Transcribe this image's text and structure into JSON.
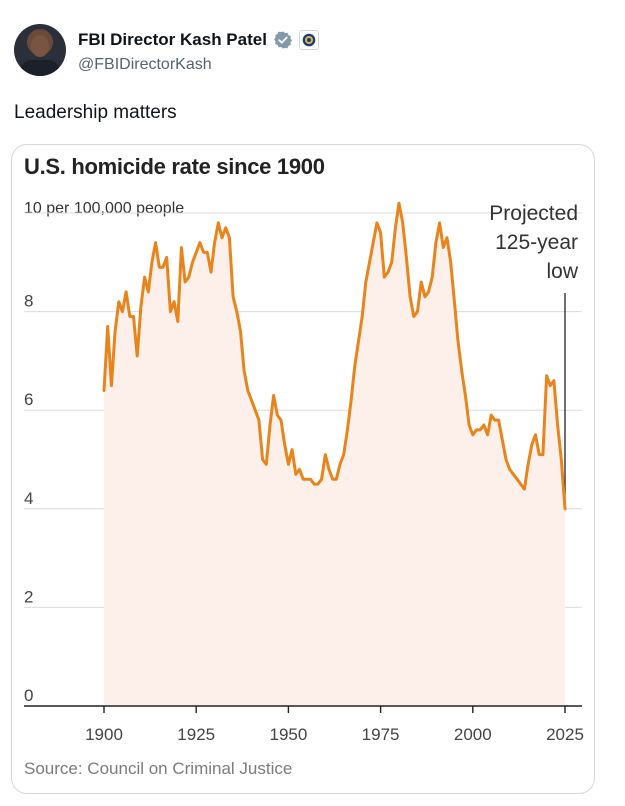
{
  "tweet": {
    "author_name": "FBI Director Kash Patel",
    "handle": "@FBIDirectorKash",
    "text": "Leadership matters",
    "verified_color": "#829aab"
  },
  "chart": {
    "source": "Source: Council on Criminal Justice"
  },
  "chart_data": {
    "type": "area",
    "title": "U.S. homicide rate since 1900",
    "ylabel": "10 per 100,000 people",
    "xlabel": "",
    "xlim": [
      1900,
      2025
    ],
    "ylim": [
      0,
      10
    ],
    "xticks": [
      "1900",
      "1925",
      "1950",
      "1975",
      "2000",
      "2025"
    ],
    "yticks": [
      "0",
      "2",
      "4",
      "6",
      "8"
    ],
    "grid": true,
    "line_color": "#e8841c",
    "fill_color": "#fdf0ea",
    "annotation": {
      "lines": [
        "Projected",
        "125-year",
        "low"
      ],
      "x": 2025,
      "y": 4.0
    },
    "series": [
      {
        "x": [
          1900,
          1901,
          1902,
          1903,
          1904,
          1905,
          1906,
          1907,
          1908,
          1909,
          1910,
          1911,
          1912,
          1913,
          1914,
          1915,
          1916,
          1917,
          1918,
          1919,
          1920,
          1921,
          1922,
          1923,
          1924,
          1925,
          1926,
          1927,
          1928,
          1929,
          1930,
          1931,
          1932,
          1933,
          1934,
          1935,
          1936,
          1937,
          1938,
          1939,
          1940,
          1941,
          1942,
          1943,
          1944,
          1945,
          1946,
          1947,
          1948,
          1949,
          1950,
          1951,
          1952,
          1953,
          1954,
          1955,
          1956,
          1957,
          1958,
          1959,
          1960,
          1961,
          1962,
          1963,
          1964,
          1965,
          1966,
          1967,
          1968,
          1969,
          1970,
          1971,
          1972,
          1973,
          1974,
          1975,
          1976,
          1977,
          1978,
          1979,
          1980,
          1981,
          1982,
          1983,
          1984,
          1985,
          1986,
          1987,
          1988,
          1989,
          1990,
          1991,
          1992,
          1993,
          1994,
          1995,
          1996,
          1997,
          1998,
          1999,
          2000,
          2001,
          2002,
          2003,
          2004,
          2005,
          2006,
          2007,
          2008,
          2009,
          2010,
          2011,
          2012,
          2013,
          2014,
          2015,
          2016,
          2017,
          2018,
          2019,
          2020,
          2021,
          2022,
          2023,
          2024,
          2025
        ],
        "values": [
          6.4,
          7.7,
          6.5,
          7.6,
          8.2,
          8.0,
          8.4,
          7.9,
          7.9,
          7.1,
          8.1,
          8.7,
          8.4,
          9.0,
          9.4,
          8.9,
          8.9,
          9.1,
          8.0,
          8.2,
          7.8,
          9.3,
          8.6,
          8.7,
          9.0,
          9.2,
          9.4,
          9.2,
          9.2,
          8.8,
          9.4,
          9.8,
          9.5,
          9.7,
          9.5,
          8.3,
          8.0,
          7.6,
          6.8,
          6.4,
          6.2,
          6.0,
          5.8,
          5.0,
          4.9,
          5.7,
          6.3,
          5.9,
          5.8,
          5.3,
          4.9,
          5.2,
          4.7,
          4.8,
          4.6,
          4.6,
          4.6,
          4.5,
          4.5,
          4.6,
          5.1,
          4.8,
          4.6,
          4.6,
          4.9,
          5.1,
          5.6,
          6.2,
          6.9,
          7.4,
          7.9,
          8.6,
          9.0,
          9.4,
          9.8,
          9.6,
          8.7,
          8.8,
          9.0,
          9.7,
          10.2,
          9.8,
          9.1,
          8.3,
          7.9,
          8.0,
          8.6,
          8.3,
          8.4,
          8.7,
          9.4,
          9.8,
          9.3,
          9.5,
          9.0,
          8.2,
          7.4,
          6.8,
          6.3,
          5.7,
          5.5,
          5.6,
          5.6,
          5.7,
          5.5,
          5.9,
          5.8,
          5.8,
          5.4,
          5.0,
          4.8,
          4.7,
          4.6,
          4.5,
          4.4,
          4.9,
          5.3,
          5.5,
          5.1,
          5.1,
          6.7,
          6.5,
          6.6,
          5.7,
          5.0,
          4.0
        ]
      }
    ]
  }
}
